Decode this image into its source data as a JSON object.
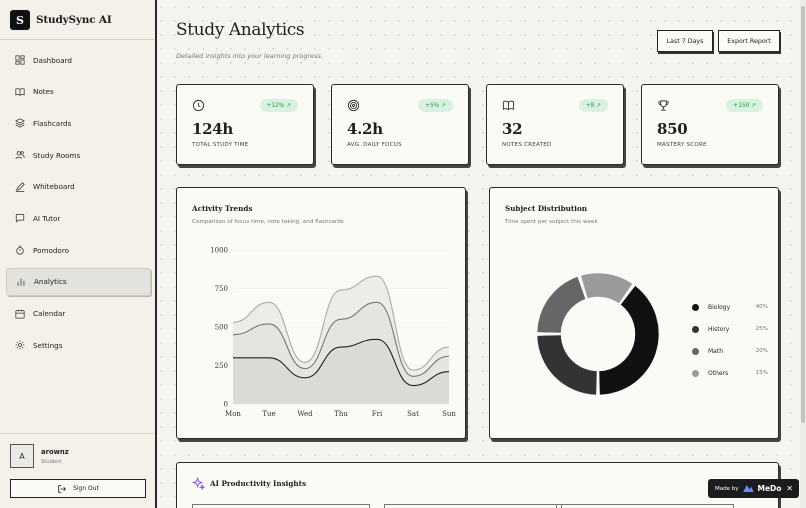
{
  "brand": {
    "logo_letter": "S",
    "name": "StudySync AI"
  },
  "nav": {
    "items": [
      {
        "label": "Dashboard",
        "icon": "dashboard-icon",
        "active": false
      },
      {
        "label": "Notes",
        "icon": "book-icon",
        "active": false
      },
      {
        "label": "Flashcards",
        "icon": "layers-icon",
        "active": false
      },
      {
        "label": "Study Rooms",
        "icon": "users-icon",
        "active": false
      },
      {
        "label": "Whiteboard",
        "icon": "pen-icon",
        "active": false
      },
      {
        "label": "AI Tutor",
        "icon": "chat-icon",
        "active": false
      },
      {
        "label": "Pomodoro",
        "icon": "timer-icon",
        "active": false
      },
      {
        "label": "Analytics",
        "icon": "bar-chart-icon",
        "active": true
      },
      {
        "label": "Calendar",
        "icon": "calendar-icon",
        "active": false
      },
      {
        "label": "Settings",
        "icon": "gear-icon",
        "active": false
      }
    ]
  },
  "user": {
    "initial": "A",
    "name": "arownz",
    "role": "Student",
    "signout_label": "Sign Out"
  },
  "header": {
    "title": "Study Analytics",
    "subtitle": "Detailed insights into your learning progress.",
    "range_label": "Last 7 Days",
    "export_label": "Export Report"
  },
  "stats": [
    {
      "icon": "clock-icon",
      "badge": "+12% ↗",
      "value": "124h",
      "label": "TOTAL STUDY TIME"
    },
    {
      "icon": "target-icon",
      "badge": "+5% ↗",
      "value": "4.2h",
      "label": "AVG. DAILY FOCUS"
    },
    {
      "icon": "book-icon",
      "badge": "+8 ↗",
      "value": "32",
      "label": "NOTES CREATED"
    },
    {
      "icon": "trophy-icon",
      "badge": "+150 ↗",
      "value": "850",
      "label": "MASTERY SCORE"
    }
  ],
  "activity": {
    "title": "Activity Trends",
    "subtitle": "Comparison of focus time, note taking, and flashcards"
  },
  "distribution": {
    "title": "Subject Distribution",
    "subtitle": "Time spent per subject this week"
  },
  "insights": {
    "title": "AI Productivity Insights"
  },
  "medo": {
    "prefix": "Made by",
    "name": "MeDo",
    "close": "✕"
  },
  "colors": {
    "accent_green": "#229a4a",
    "badge_bg": "#d9f2df",
    "ink": "#1f1f1f"
  },
  "chart_data": [
    {
      "type": "area",
      "title": "Activity Trends",
      "subtitle": "Comparison of focus time, note taking, and flashcards",
      "categories": [
        "Mon",
        "Tue",
        "Wed",
        "Thu",
        "Fri",
        "Sat",
        "Sun"
      ],
      "yticks": [
        0,
        250,
        500,
        750,
        1000
      ],
      "ylim": [
        0,
        1000
      ],
      "stacked": true,
      "series": [
        {
          "values": [
            300,
            300,
            170,
            370,
            420,
            120,
            210
          ],
          "color": "#222222",
          "fill": "#dcdad4"
        },
        {
          "values": [
            150,
            220,
            60,
            180,
            240,
            60,
            100
          ],
          "color": "#777777",
          "fill": "#e6e4de"
        },
        {
          "values": [
            80,
            140,
            40,
            190,
            170,
            40,
            60
          ],
          "color": "#aaaaaa",
          "fill": "#eeece7"
        }
      ]
    },
    {
      "type": "pie",
      "title": "Subject Distribution",
      "subtitle": "Time spent per subject this week",
      "donut": true,
      "labels": [
        "Biology",
        "History",
        "Math",
        "Others"
      ],
      "values": [
        40,
        25,
        20,
        15
      ],
      "colors": [
        "#111111",
        "#333333",
        "#666666",
        "#9a9a9a"
      ]
    }
  ]
}
